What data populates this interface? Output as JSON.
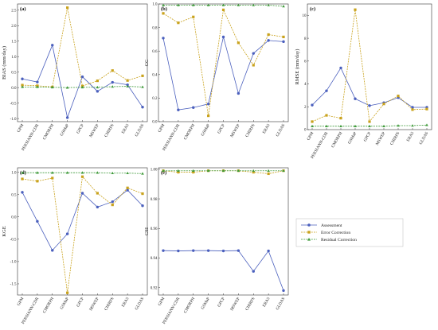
{
  "colors": {
    "assessment": "#4a5fbd",
    "error": "#c9a21c",
    "residual": "#3f9a3a"
  },
  "legend": {
    "items": [
      "Assessment",
      "Error Correction",
      "Residual Correction"
    ]
  },
  "chart_data": [
    {
      "type": "line",
      "panel": "(a)",
      "ylabel": "BIAS (mm/day)",
      "categories": [
        "GPM",
        "PERSIANN-CDR",
        "CMORPH",
        "GSMaP",
        "GPCP",
        "MSWEP",
        "CHIRPS",
        "ERA5",
        "GLDAS"
      ],
      "ylim": [
        -1.1,
        2.7
      ],
      "yticks": [
        -1.0,
        -0.5,
        0.0,
        0.5,
        1.0,
        1.5,
        2.0,
        2.5
      ],
      "series": [
        {
          "name": "Assessment",
          "values": [
            0.28,
            0.18,
            1.37,
            -0.97,
            0.35,
            -0.12,
            0.17,
            0.09,
            -0.63
          ]
        },
        {
          "name": "Error Correction",
          "values": [
            0.08,
            0.06,
            0.02,
            2.58,
            0.05,
            0.22,
            0.55,
            0.23,
            0.38
          ]
        },
        {
          "name": "Residual Correction",
          "values": [
            0.02,
            0.02,
            0.01,
            0.0,
            0.01,
            0.01,
            0.03,
            0.04,
            0.02
          ]
        }
      ]
    },
    {
      "type": "line",
      "panel": "(b)",
      "ylabel": "CC",
      "categories": [
        "GPM",
        "PERSIANN-CDR",
        "CMORPH",
        "GSMaP",
        "GPCP",
        "MSWEP",
        "CHIRPS",
        "ERA5",
        "GLDAS"
      ],
      "ylim": [
        0.0,
        1.0
      ],
      "yticks": [
        0.0,
        0.2,
        0.4,
        0.6,
        0.8,
        1.0
      ],
      "series": [
        {
          "name": "Assessment",
          "values": [
            0.71,
            0.1,
            0.12,
            0.15,
            0.72,
            0.24,
            0.58,
            0.69,
            0.68
          ]
        },
        {
          "name": "Error Correction",
          "values": [
            0.92,
            0.84,
            0.89,
            0.05,
            0.95,
            0.67,
            0.48,
            0.74,
            0.72
          ]
        },
        {
          "name": "Residual Correction",
          "values": [
            0.99,
            0.99,
            0.99,
            0.99,
            0.99,
            0.99,
            0.99,
            0.99,
            0.98
          ]
        }
      ]
    },
    {
      "type": "line",
      "panel": "(c)",
      "ylabel": "RMSE (mm/day)",
      "categories": [
        "GPM",
        "PERSIANN-CDR",
        "CMORPH",
        "GSMaP",
        "GPCP",
        "MSWEP",
        "CHIRPS",
        "ERA5",
        "GLDAS"
      ],
      "ylim": [
        0,
        11
      ],
      "yticks": [
        0,
        2,
        4,
        6,
        8,
        10
      ],
      "series": [
        {
          "name": "Assessment",
          "values": [
            2.15,
            3.4,
            5.4,
            2.7,
            2.1,
            2.35,
            2.8,
            1.95,
            1.95
          ]
        },
        {
          "name": "Error Correction",
          "values": [
            0.7,
            1.25,
            1.0,
            10.5,
            0.7,
            2.25,
            2.95,
            1.75,
            1.8
          ]
        },
        {
          "name": "Residual Correction",
          "values": [
            0.3,
            0.3,
            0.3,
            0.3,
            0.3,
            0.3,
            0.35,
            0.35,
            0.4
          ]
        }
      ]
    },
    {
      "type": "line",
      "panel": "(d)",
      "ylabel": "KGE",
      "categories": [
        "GPM",
        "PERSIANN-CDR",
        "CMORPH",
        "GSMaP",
        "GPCP",
        "MSWEP",
        "CHIRPS",
        "ERA5",
        "GLDAS"
      ],
      "ylim": [
        -1.75,
        1.1
      ],
      "yticks": [
        -1.5,
        -1.0,
        -0.5,
        0.0,
        0.5,
        1.0
      ],
      "series": [
        {
          "name": "Assessment",
          "values": [
            0.55,
            -0.1,
            -0.75,
            -0.38,
            0.53,
            0.22,
            0.34,
            0.6,
            0.25
          ]
        },
        {
          "name": "Error Correction",
          "values": [
            0.85,
            0.8,
            0.87,
            -1.7,
            0.9,
            0.53,
            0.27,
            0.65,
            0.52
          ]
        },
        {
          "name": "Residual Correction",
          "values": [
            0.99,
            0.99,
            0.99,
            0.99,
            0.99,
            0.99,
            0.98,
            0.98,
            0.97
          ]
        }
      ]
    },
    {
      "type": "line",
      "panel": "(e)",
      "ylabel": "CSI",
      "categories": [
        "GPM",
        "PERSIANN-CDR",
        "CMORPH",
        "GSMaP",
        "GPCP",
        "MSWEP",
        "CHIRPS",
        "ERA5",
        "GLDAS"
      ],
      "ylim": [
        0.915,
        1.001
      ],
      "yticks": [
        0.92,
        0.94,
        0.96,
        0.98,
        1.0
      ],
      "series": [
        {
          "name": "Assessment",
          "values": [
            0.945,
            0.9448,
            0.945,
            0.945,
            0.9448,
            0.945,
            0.931,
            0.9448,
            0.918
          ]
        },
        {
          "name": "Error Correction",
          "values": [
            0.999,
            0.998,
            0.998,
            0.999,
            0.999,
            0.999,
            0.998,
            0.997,
            0.999
          ]
        },
        {
          "name": "Residual Correction",
          "values": [
            0.999,
            0.999,
            0.999,
            0.999,
            0.999,
            0.999,
            0.999,
            0.999,
            0.999
          ]
        }
      ]
    }
  ]
}
